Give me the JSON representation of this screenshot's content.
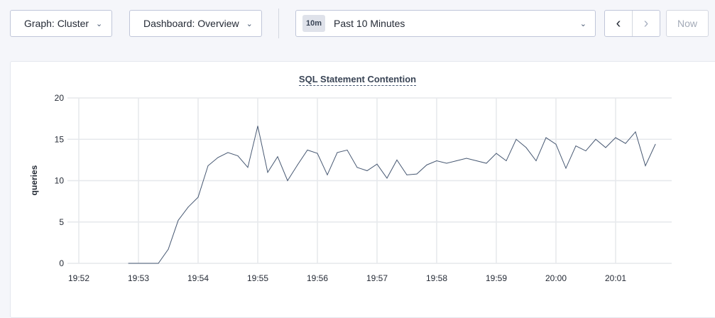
{
  "toolbar": {
    "graph_select": "Graph: Cluster",
    "dashboard_select": "Dashboard: Overview",
    "time_badge": "10m",
    "time_range": "Past 10 Minutes",
    "prev_icon": "chevron-left-icon",
    "next_icon": "chevron-right-icon",
    "now_label": "Now"
  },
  "chart_data": {
    "type": "line",
    "title": "SQL Statement Contention",
    "ylabel": "queries",
    "xlabel": "",
    "ylim": [
      0,
      20
    ],
    "yticks": [
      0,
      5,
      10,
      15,
      20
    ],
    "xticks": [
      "19:52",
      "19:53",
      "19:54",
      "19:55",
      "19:56",
      "19:57",
      "19:58",
      "19:59",
      "20:00",
      "20:01"
    ],
    "grid": true,
    "line_color": "#475872",
    "x_start": "19:52:50",
    "x_step_seconds": 10,
    "values": [
      0,
      0,
      0,
      0,
      1.7,
      5.2,
      6.8,
      8.0,
      11.8,
      12.8,
      13.4,
      13.0,
      11.6,
      16.6,
      11.0,
      12.9,
      10.0,
      11.9,
      13.7,
      13.3,
      10.7,
      13.4,
      13.7,
      11.6,
      11.2,
      12.0,
      10.3,
      12.5,
      10.7,
      10.8,
      11.9,
      12.4,
      12.1,
      12.4,
      12.7,
      12.4,
      12.1,
      13.3,
      12.4,
      15.0,
      14.0,
      12.4,
      15.2,
      14.4,
      11.5,
      14.2,
      13.6,
      15.0,
      14.0,
      15.2,
      14.5,
      15.9,
      11.8,
      14.4
    ]
  }
}
